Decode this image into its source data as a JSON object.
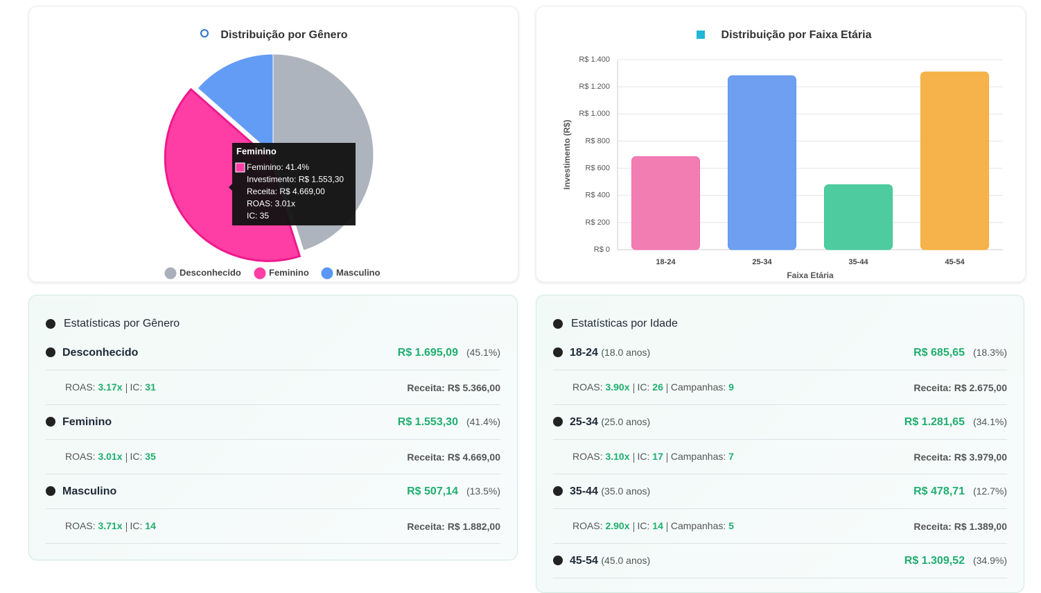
{
  "chart_data": [
    {
      "type": "pie",
      "title": "Distribuição por Gênero",
      "categories": [
        "Desconhecido",
        "Feminino",
        "Masculino"
      ],
      "values": [
        45.1,
        41.4,
        13.5
      ],
      "colors": [
        "#aab0ba",
        "#ff3ea5",
        "#5b97f5"
      ],
      "tooltip": {
        "title": "Feminino",
        "lines": [
          "Feminino: 41.4%",
          "Investimento: R$ 1.553,30",
          "Receita: R$ 4.669,00",
          "ROAS: 3.01x",
          "IC: 35"
        ]
      }
    },
    {
      "type": "bar",
      "title": "Distribuição por Faixa Etária",
      "categories": [
        "18-24",
        "25-34",
        "35-44",
        "45-54"
      ],
      "values": [
        685.65,
        1281.65,
        478.71,
        1309.52
      ],
      "colors": [
        "#f06fab",
        "#5e95f0",
        "#3cc795",
        "#f5ab37"
      ],
      "ylim": [
        0,
        1400
      ],
      "yticks": [
        {
          "value": 0,
          "label": "R$ 0"
        },
        {
          "value": 200,
          "label": "R$ 200"
        },
        {
          "value": 400,
          "label": "R$ 400"
        },
        {
          "value": 600,
          "label": "R$ 600"
        },
        {
          "value": 800,
          "label": "R$ 800"
        },
        {
          "value": 1000,
          "label": "R$ 1.000"
        },
        {
          "value": 1200,
          "label": "R$ 1.200"
        },
        {
          "value": 1400,
          "label": "R$ 1.400"
        }
      ],
      "ylabel": "Investimento (R$)",
      "xlabel": "Faixa Etária",
      "grid": true
    }
  ],
  "gender_stats": {
    "title": "Estatísticas por Gênero",
    "labels": {
      "roas": "ROAS:",
      "ic": "IC:"
    },
    "items": [
      {
        "name": "Desconhecido",
        "amount": "R$ 1.695,09",
        "pct": "(45.1%)",
        "roas": "3.17x",
        "ic": "31",
        "receita": "Receita: R$ 5.366,00"
      },
      {
        "name": "Feminino",
        "amount": "R$ 1.553,30",
        "pct": "(41.4%)",
        "roas": "3.01x",
        "ic": "35",
        "receita": "Receita: R$ 4.669,00"
      },
      {
        "name": "Masculino",
        "amount": "R$ 507,14",
        "pct": "(13.5%)",
        "roas": "3.71x",
        "ic": "14",
        "receita": "Receita: R$ 1.882,00"
      }
    ]
  },
  "age_stats": {
    "title": "Estatísticas por Idade",
    "labels": {
      "roas": "ROAS:",
      "ic": "IC:",
      "campanhas": "Campanhas:"
    },
    "items": [
      {
        "name": "18-24",
        "years": "(18.0 anos)",
        "amount": "R$ 685,65",
        "pct": "(18.3%)",
        "roas": "3.90x",
        "ic": "26",
        "campanhas": "9",
        "receita": "Receita: R$ 2.675,00"
      },
      {
        "name": "25-34",
        "years": "(25.0 anos)",
        "amount": "R$ 1.281,65",
        "pct": "(34.1%)",
        "roas": "3.10x",
        "ic": "17",
        "campanhas": "7",
        "receita": "Receita: R$ 3.979,00"
      },
      {
        "name": "35-44",
        "years": "(35.0 anos)",
        "amount": "R$ 478,71",
        "pct": "(12.7%)",
        "roas": "2.90x",
        "ic": "14",
        "campanhas": "5",
        "receita": "Receita: R$ 1.389,00"
      },
      {
        "name": "45-54",
        "years": "(45.0 anos)",
        "amount": "R$ 1.309,52",
        "pct": "(34.9%)"
      }
    ]
  }
}
